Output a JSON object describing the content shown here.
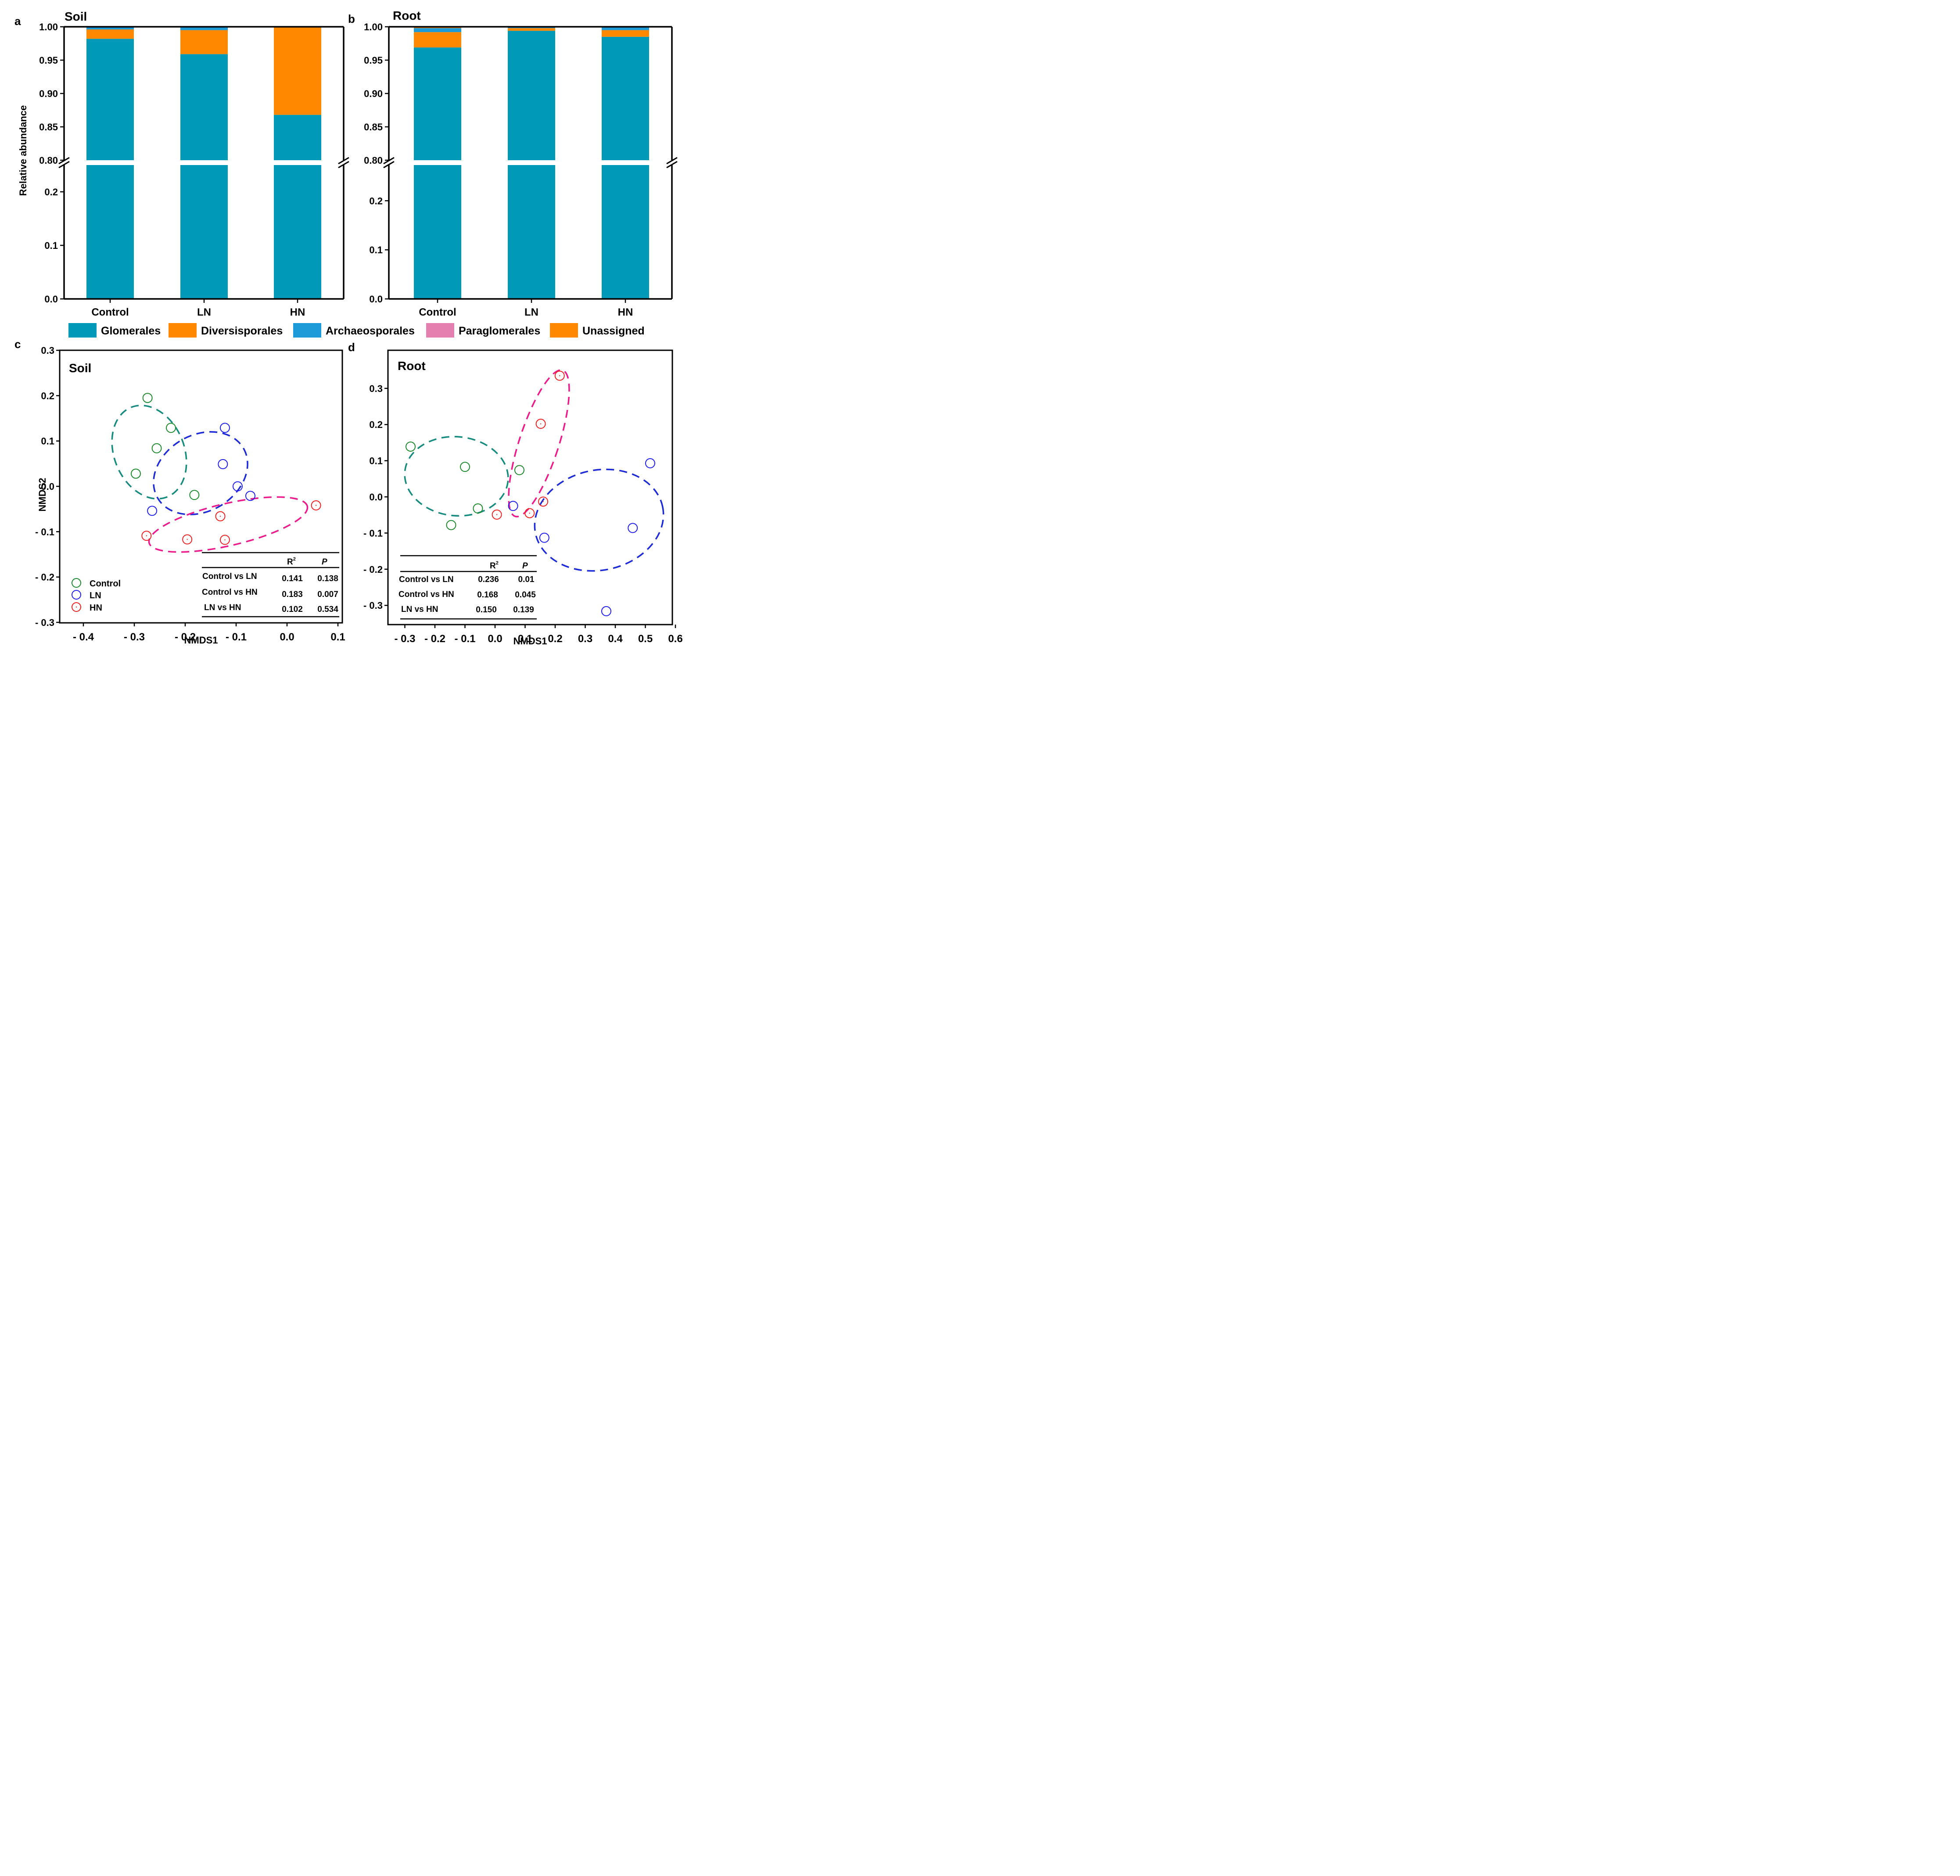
{
  "colors": {
    "glomerales": "#0099b7",
    "diversisporales": "#ff8800",
    "archaeosporales": "#1d9bd8",
    "paraglomerales": "#e57fb0",
    "unassigned": "#ff8800",
    "control": "#1a8a2a",
    "ln": "#1e1eee",
    "hn": "#ee2020",
    "control_ellipse": "#168c7e",
    "ln_ellipse": "#1d2ad8",
    "hn_ellipse": "#ee1a8c"
  },
  "legend_bar": [
    "Glomerales",
    "Diversisporales",
    "Archaeosporales",
    "Paraglomerales",
    "Unassigned"
  ],
  "chart_data": [
    {
      "panel": "a",
      "title": "Soil",
      "type": "bar",
      "stacked": true,
      "ylabel": "Relative abundance",
      "broken_axis": {
        "lower": [
          0,
          0.25
        ],
        "upper": [
          0.8,
          1.0
        ]
      },
      "ticks_upper": [
        "0.80",
        "0.85",
        "0.90",
        "0.95",
        "1.00"
      ],
      "ticks_lower": [
        "0.0",
        "0.1",
        "0.2"
      ],
      "categories": [
        "Control",
        "LN",
        "HN"
      ],
      "series": [
        {
          "name": "Glomerales",
          "values": [
            0.982,
            0.959,
            0.868
          ]
        },
        {
          "name": "Diversisporales",
          "values": [
            0.014,
            0.036,
            0.131
          ]
        },
        {
          "name": "Archaeosporales",
          "values": [
            0.004,
            0.005,
            0.001
          ]
        }
      ]
    },
    {
      "panel": "b",
      "title": "Root",
      "type": "bar",
      "stacked": true,
      "ylabel": "",
      "broken_axis": {
        "lower": [
          0,
          0.2727
        ],
        "upper": [
          0.8,
          1.0
        ]
      },
      "ticks_upper": [
        "0.80",
        "0.85",
        "0.90",
        "0.95",
        "1.00"
      ],
      "ticks_lower": [
        "0.0",
        "0.1",
        "0.2"
      ],
      "categories": [
        "Control",
        "LN",
        "HN"
      ],
      "series": [
        {
          "name": "Glomerales",
          "values": [
            0.969,
            0.994,
            0.985
          ]
        },
        {
          "name": "Diversisporales",
          "values": [
            0.023,
            0.004,
            0.01
          ]
        },
        {
          "name": "Archaeosporales",
          "values": [
            0.006,
            0.002,
            0.004
          ]
        },
        {
          "name": "Unassigned",
          "values": [
            0.002,
            0.0,
            0.001
          ]
        }
      ]
    },
    {
      "panel": "c",
      "title": "Soil",
      "type": "scatter",
      "xlabel": "NMDS1",
      "ylabel": "NMDS2",
      "xlim": [
        -0.42,
        0.11
      ],
      "ylim": [
        -0.3,
        0.3
      ],
      "xticks": [
        "- 0.4",
        "- 0.3",
        "- 0.2",
        "- 0.1",
        "0.0",
        "0.1"
      ],
      "yticks": [
        "- 0.3",
        "- 0.2",
        "- 0.1",
        "0.0",
        "0.1",
        "0.2",
        "0.3"
      ],
      "legend": [
        "Control",
        "LN",
        "HN"
      ],
      "series": [
        {
          "name": "Control",
          "x": [
            -0.274,
            -0.228,
            -0.256,
            -0.297,
            -0.182
          ],
          "y": [
            0.195,
            0.129,
            0.084,
            0.028,
            -0.019
          ]
        },
        {
          "name": "LN",
          "x": [
            -0.122,
            -0.126,
            -0.097,
            -0.072,
            -0.265
          ],
          "y": [
            0.129,
            0.049,
            0.0,
            -0.021,
            -0.054
          ]
        },
        {
          "name": "HN",
          "x": [
            0.057,
            -0.131,
            -0.196,
            -0.122,
            -0.276
          ],
          "y": [
            -0.042,
            -0.066,
            -0.117,
            -0.118,
            -0.109
          ]
        }
      ],
      "stats_table": {
        "headers": [
          "",
          "R",
          "P"
        ],
        "rows": [
          [
            "Control vs LN",
            "0.141",
            "0.138"
          ],
          [
            "Control vs HN",
            "0.183",
            "0.007"
          ],
          [
            "LN vs HN",
            "0.102",
            "0.534"
          ]
        ]
      }
    },
    {
      "panel": "d",
      "title": "Root",
      "type": "scatter",
      "xlabel": "NMDS1",
      "ylabel": "",
      "xlim": [
        -0.33,
        0.61
      ],
      "ylim": [
        -0.35,
        0.38
      ],
      "xticks": [
        "- 0.3",
        "- 0.2",
        "- 0.1",
        "0.0",
        "0.1",
        "0.2",
        "0.3",
        "0.4",
        "0.5",
        "0.6"
      ],
      "yticks": [
        "- 0.3",
        "- 0.2",
        "- 0.1",
        "0.0",
        "0.1",
        "0.2",
        "0.3"
      ],
      "series": [
        {
          "name": "Control",
          "x": [
            -0.281,
            -0.1,
            -0.057,
            -0.146,
            0.081
          ],
          "y": [
            0.139,
            0.083,
            -0.032,
            -0.078,
            0.074
          ]
        },
        {
          "name": "LN",
          "x": [
            0.06,
            0.164,
            0.458,
            0.516,
            0.37
          ],
          "y": [
            -0.025,
            -0.113,
            -0.086,
            0.093,
            -0.316
          ]
        },
        {
          "name": "HN",
          "x": [
            0.215,
            0.152,
            0.006,
            0.115,
            0.16
          ],
          "y": [
            0.335,
            0.202,
            -0.049,
            -0.045,
            -0.013
          ]
        }
      ],
      "stats_table": {
        "headers": [
          "",
          "R",
          "P"
        ],
        "rows": [
          [
            "Control vs LN",
            "0.236",
            "0.01"
          ],
          [
            "Control vs HN",
            "0.168",
            "0.045"
          ],
          [
            "LN vs HN",
            "0.150",
            "0.139"
          ]
        ]
      }
    }
  ]
}
